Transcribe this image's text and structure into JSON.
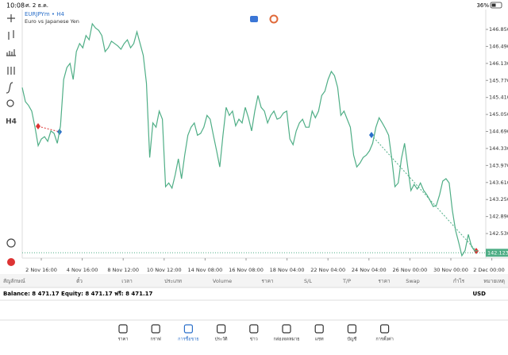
{
  "status_bar": {
    "time": "10:08",
    "date": "ศ. 2 ธ.ค.",
    "battery": "36%"
  },
  "toolbar": {
    "timeframe": "H4"
  },
  "chart": {
    "type": "line",
    "symbol": "EURJPYm • H4",
    "description": "Euro vs Japanese Yen",
    "color": "#4fae86",
    "x_labels": [
      "2 Nov 16:00",
      "4 Nov 16:00",
      "8 Nov 12:00",
      "10 Nov 12:00",
      "14 Nov 08:00",
      "16 Nov 08:00",
      "18 Nov 04:00",
      "22 Nov 04:00",
      "24 Nov 04:00",
      "26 Nov 00:00",
      "30 Nov 00:00",
      "2 Dec 00:00"
    ],
    "values": [
      145.62,
      145.32,
      145.24,
      145.12,
      144.78,
      144.39,
      144.53,
      144.58,
      144.48,
      144.7,
      144.65,
      144.44,
      144.81,
      145.79,
      146.04,
      146.13,
      145.79,
      146.38,
      146.55,
      146.46,
      146.72,
      146.63,
      146.97,
      146.88,
      146.83,
      146.72,
      146.38,
      146.46,
      146.6,
      146.55,
      146.5,
      146.43,
      146.55,
      146.63,
      146.46,
      146.55,
      146.8,
      146.55,
      146.3,
      145.71,
      144.14,
      144.87,
      144.78,
      145.12,
      144.95,
      143.52,
      143.6,
      143.49,
      143.77,
      144.11,
      143.69,
      144.19,
      144.61,
      144.78,
      144.87,
      144.61,
      144.65,
      144.78,
      145.03,
      144.95,
      144.61,
      144.28,
      143.94,
      144.61,
      145.2,
      145.03,
      145.12,
      144.81,
      144.95,
      144.87,
      145.2,
      144.98,
      144.7,
      145.12,
      145.45,
      145.2,
      145.12,
      144.87,
      145.03,
      145.12,
      144.95,
      144.98,
      145.08,
      145.12,
      144.53,
      144.41,
      144.7,
      144.87,
      144.95,
      144.78,
      144.78,
      145.12,
      144.98,
      145.12,
      145.45,
      145.54,
      145.79,
      145.96,
      145.87,
      145.62,
      145.03,
      145.12,
      144.95,
      144.78,
      144.19,
      143.94,
      144.02,
      144.14,
      144.19,
      144.28,
      144.44,
      144.78,
      144.98,
      144.87,
      144.75,
      144.61,
      144.11,
      143.52,
      143.6,
      144.11,
      144.44,
      143.94,
      143.44,
      143.57,
      143.47,
      143.6,
      143.44,
      143.35,
      143.23,
      143.1,
      143.13,
      143.35,
      143.64,
      143.69,
      143.6,
      143.02,
      142.6,
      142.34,
      142.06,
      142.17,
      142.51,
      142.26,
      142.16,
      142.17
    ],
    "ylim": [
      142.01,
      147.27
    ],
    "yticks": [
      {
        "value": 146.85,
        "label": "146.850"
      },
      {
        "value": 146.49,
        "label": "146.490"
      },
      {
        "value": 146.13,
        "label": "146.130"
      },
      {
        "value": 145.77,
        "label": "145.770"
      },
      {
        "value": 145.41,
        "label": "145.410"
      },
      {
        "value": 145.05,
        "label": "145.050"
      },
      {
        "value": 144.69,
        "label": "144.690"
      },
      {
        "value": 144.33,
        "label": "144.330"
      },
      {
        "value": 143.97,
        "label": "143.970"
      },
      {
        "value": 143.61,
        "label": "143.610"
      },
      {
        "value": 143.25,
        "label": "143.250"
      },
      {
        "value": 142.89,
        "label": "142.890"
      },
      {
        "value": 142.53,
        "label": "142.530"
      }
    ],
    "current_price": 142.123
  },
  "table": {
    "columns": [
      "สัญลักษณ์",
      "ตั๋ว",
      "เวลา",
      "ประเภท",
      "Volume",
      "ราคา",
      "S/L",
      "T/P",
      "ราคา",
      "Swap",
      "กำไร",
      "หมายเหตุ"
    ],
    "summary": "Balance: 8 471.17 Equity: 8 471.17 ฟรี: 8 471.17",
    "currency": "USD"
  },
  "tabs": [
    "ราคา",
    "กราฟ",
    "การซื้อขาย",
    "ประวัติ",
    "ข่าว",
    "กล่องจดหมาย",
    "แชท",
    "บัญชี",
    "การตั้งค่า"
  ]
}
